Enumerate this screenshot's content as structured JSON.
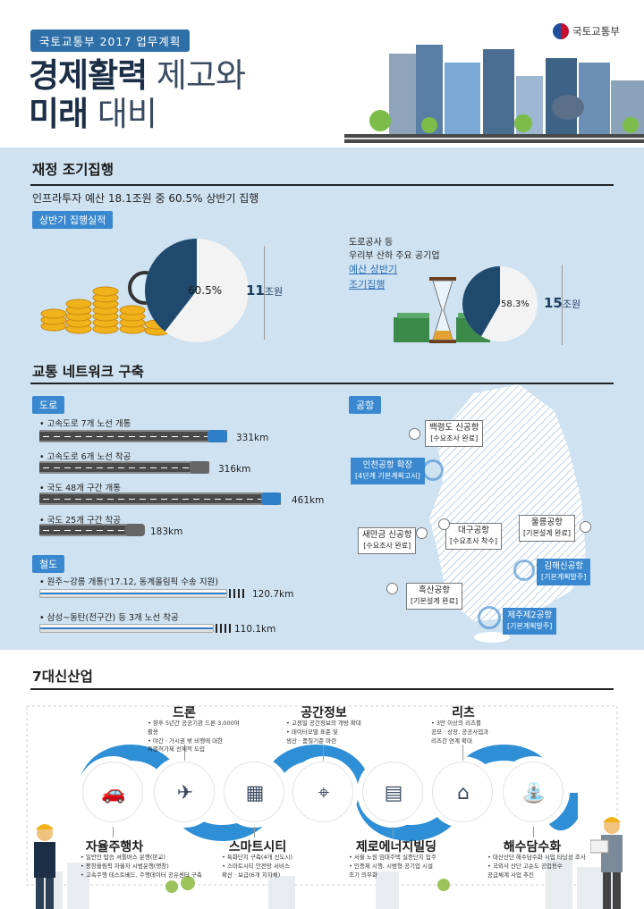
{
  "header": {
    "tag": "국토교통부 2017 업무계획",
    "title_line1_bold": "경제활력",
    "title_line1_thin": " 제고와",
    "title_line2_bold": "미래",
    "title_line2_thin": " 대비",
    "ministry": "국토교통부"
  },
  "finance": {
    "title": "재정 조기집행",
    "subtitle": "인프라투자 예산 18.1조원 중 60.5% 상반기 집행",
    "pill": "상반기 집행실적",
    "pie1": {
      "percent_label": "60.5%",
      "fraction": 0.605,
      "amount": "11",
      "unit": "조원"
    },
    "pie2": {
      "note1": "도로공사 등",
      "note2": "우리부 산하 주요 공기업",
      "note3": "예산 상반기",
      "note4": "조기집행",
      "percent_label": "58.3%",
      "fraction": 0.583,
      "amount": "15",
      "unit": "조원"
    }
  },
  "transport": {
    "title": "교통 네트워크 구축",
    "road_pill": "도로",
    "rail_pill": "철도",
    "airport_pill": "공항",
    "roads": [
      {
        "label": "• 고속도로 7개 노선 개통",
        "value": "331km",
        "km": 331
      },
      {
        "label": "• 고속도로 6개 노선 착공",
        "value": "316km",
        "km": 316
      },
      {
        "label": "• 국도 48개 구간 개통",
        "value": "461km",
        "km": 461
      },
      {
        "label": "• 국도 25개 구간 착공",
        "value": "183km",
        "km": 183
      }
    ],
    "rails": [
      {
        "label": "• 원주~강릉 개통('17.12, 동계올림픽 수송 지원)",
        "value": "120.7km"
      },
      {
        "label": "• 삼성~동탄(전구간) 등 3개 노선 착공",
        "value": "110.1km"
      }
    ],
    "airports": [
      {
        "name": "백령도 신공항",
        "status": "[수요조사 완료]"
      },
      {
        "name": "인천공항 확장",
        "status": "[4단계 기본계획고시]"
      },
      {
        "name": "새만금 신공항",
        "status": "[수요조사 완료]"
      },
      {
        "name": "대구공항",
        "status": "[수요조사 착수]"
      },
      {
        "name": "울릉공항",
        "status": "[기본설계 완료]"
      },
      {
        "name": "김해신공항",
        "status": "[기본계획발주]"
      },
      {
        "name": "흑산공항",
        "status": "[기본설계 완료]"
      },
      {
        "name": "제주제2공항",
        "status": "[기본계획발주]"
      }
    ]
  },
  "industries": {
    "title": "7대신산업",
    "items": [
      {
        "name": "자율주행차",
        "icon": "car-icon",
        "desc": [
          "• 일반인 탑승 셔틀버스 운행(판교)",
          "• 평창올림픽 자율차 시범운행(평창)",
          "• 고속주행 테스트베드, 주행데이터 공유센터 구축"
        ]
      },
      {
        "name": "드론",
        "icon": "drone-icon",
        "desc": [
          "• 향후 5년간 공공기관 드론 3,000여 활용",
          "• 야간 · 가시권 밖 비행에 대한",
          "  특별허가제 선제적 도입"
        ]
      },
      {
        "name": "스마트시티",
        "icon": "smart-city-icon",
        "desc": [
          "• 특화단지 구축(4개 신도시)",
          "• 스마트시티 안전망 서비스",
          "  확산 · 보급(6개 지자체)"
        ]
      },
      {
        "name": "공간정보",
        "icon": "map-pin-icon",
        "desc": [
          "• 고정밀 공간정보의 개방 확대",
          "• 데이터모델 표준 및",
          "  생산 · 품질기준 마련"
        ]
      },
      {
        "name": "제로에너지빌딩",
        "icon": "building-icon",
        "desc": [
          "• 서울 노원 임대주택 실증단지 입주",
          "• 인증제 시행, 시범형 공기업 시설",
          "  조기 의무화"
        ]
      },
      {
        "name": "리츠",
        "icon": "reits-icon",
        "desc": [
          "• 3만 이상의 리츠를",
          "  공모 · 상장, 공공사업과",
          "  리츠간 연계 확대"
        ]
      },
      {
        "name": "해수담수화",
        "icon": "water-tap-icon",
        "desc": [
          "• 대산산단 해수담수화 사업 타당성 조사",
          "• 국외사 산단 고순도 공업용수",
          "  공급체계 사업 추진"
        ]
      }
    ]
  },
  "colors": {
    "navy": "#1c2f46",
    "blue": "#3a88cf",
    "band": "#cfe2f1",
    "gold": "#f2b21b"
  }
}
